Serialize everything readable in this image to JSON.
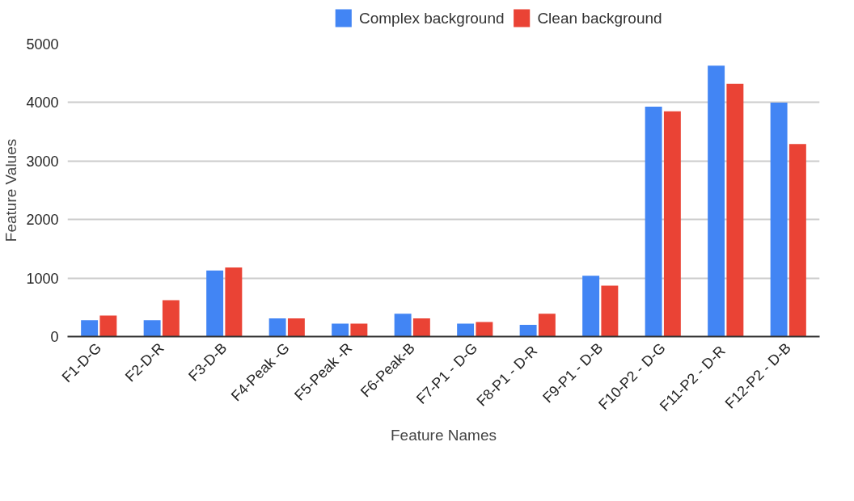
{
  "chart_data": {
    "type": "bar",
    "xlabel": "Feature Names",
    "ylabel": "Feature Values",
    "categories": [
      "F1-D-G",
      "F2-D-R",
      "F3-D-B",
      "F4-Peak -G",
      "F5-Peak -R",
      "F6-Peak-B",
      "F7-P1 - D-G",
      "F8-P1 -  D-R",
      "F9-P1 - D-B",
      "F10-P2 - D-G",
      "F11-P2 -  D-R",
      "F12-P2 - D-B"
    ],
    "series": [
      {
        "name": "Complex background",
        "color": "#4285f4",
        "values": [
          280,
          280,
          1130,
          310,
          220,
          390,
          220,
          200,
          1040,
          3930,
          4630,
          4000
        ]
      },
      {
        "name": "Clean background",
        "color": "#ea4335",
        "values": [
          360,
          620,
          1180,
          310,
          220,
          310,
          250,
          390,
          870,
          3850,
          4320,
          3290
        ]
      }
    ],
    "ylim": [
      0,
      5000
    ],
    "yticks": [
      0,
      1000,
      2000,
      3000,
      4000,
      5000
    ],
    "grid": "y",
    "legend": "top"
  }
}
